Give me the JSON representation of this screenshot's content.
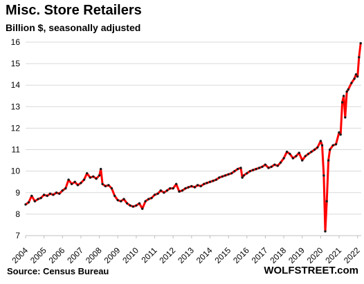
{
  "header": {
    "title": "Misc. Store Retailers",
    "subtitle": "Billion $, seasonally adjusted"
  },
  "footer": {
    "source": "Source: Census Bureau",
    "brand": "WOLFSTREET.com"
  },
  "colors": {
    "line": "#ff0000",
    "marker": "#1a1a1a",
    "grid": "#d9d9d9",
    "axis": "#bfbfbf"
  },
  "chart_data": {
    "type": "line",
    "title": "Misc. Store Retailers",
    "subtitle": "Billion $, seasonally adjusted",
    "xlabel": "",
    "ylabel": "",
    "ylim": [
      7,
      16
    ],
    "yticks": [
      7,
      8,
      9,
      10,
      11,
      12,
      13,
      14,
      15,
      16
    ],
    "xlim": [
      2004,
      2022.2
    ],
    "xticks": [
      2004,
      2005,
      2006,
      2007,
      2008,
      2009,
      2010,
      2011,
      2012,
      2013,
      2014,
      2015,
      2016,
      2017,
      2018,
      2019,
      2020,
      2021,
      2022
    ],
    "grid": "horizontal",
    "legend": "none",
    "series": [
      {
        "points": [
          [
            2004.0,
            8.45
          ],
          [
            2004.17,
            8.55
          ],
          [
            2004.33,
            8.85
          ],
          [
            2004.5,
            8.6
          ],
          [
            2004.67,
            8.7
          ],
          [
            2004.83,
            8.75
          ],
          [
            2005.0,
            8.9
          ],
          [
            2005.17,
            8.85
          ],
          [
            2005.33,
            8.95
          ],
          [
            2005.5,
            8.9
          ],
          [
            2005.67,
            9.0
          ],
          [
            2005.83,
            8.95
          ],
          [
            2006.0,
            9.1
          ],
          [
            2006.17,
            9.2
          ],
          [
            2006.33,
            9.6
          ],
          [
            2006.5,
            9.4
          ],
          [
            2006.67,
            9.5
          ],
          [
            2006.83,
            9.35
          ],
          [
            2007.0,
            9.45
          ],
          [
            2007.17,
            9.6
          ],
          [
            2007.33,
            9.9
          ],
          [
            2007.5,
            9.7
          ],
          [
            2007.67,
            9.75
          ],
          [
            2007.83,
            9.65
          ],
          [
            2008.0,
            9.8
          ],
          [
            2008.08,
            10.1
          ],
          [
            2008.17,
            9.4
          ],
          [
            2008.33,
            9.3
          ],
          [
            2008.5,
            9.35
          ],
          [
            2008.67,
            9.2
          ],
          [
            2008.83,
            8.85
          ],
          [
            2009.0,
            8.65
          ],
          [
            2009.17,
            8.6
          ],
          [
            2009.33,
            8.7
          ],
          [
            2009.5,
            8.5
          ],
          [
            2009.67,
            8.4
          ],
          [
            2009.83,
            8.35
          ],
          [
            2010.0,
            8.4
          ],
          [
            2010.17,
            8.5
          ],
          [
            2010.33,
            8.25
          ],
          [
            2010.5,
            8.6
          ],
          [
            2010.67,
            8.7
          ],
          [
            2010.83,
            8.75
          ],
          [
            2011.0,
            8.9
          ],
          [
            2011.17,
            8.95
          ],
          [
            2011.33,
            9.1
          ],
          [
            2011.5,
            9.0
          ],
          [
            2011.67,
            9.1
          ],
          [
            2011.83,
            9.2
          ],
          [
            2012.0,
            9.2
          ],
          [
            2012.17,
            9.4
          ],
          [
            2012.33,
            9.05
          ],
          [
            2012.5,
            9.1
          ],
          [
            2012.67,
            9.2
          ],
          [
            2012.83,
            9.25
          ],
          [
            2013.0,
            9.3
          ],
          [
            2013.17,
            9.25
          ],
          [
            2013.33,
            9.35
          ],
          [
            2013.5,
            9.3
          ],
          [
            2013.67,
            9.4
          ],
          [
            2013.83,
            9.45
          ],
          [
            2014.0,
            9.5
          ],
          [
            2014.17,
            9.55
          ],
          [
            2014.33,
            9.6
          ],
          [
            2014.5,
            9.7
          ],
          [
            2014.67,
            9.75
          ],
          [
            2014.83,
            9.8
          ],
          [
            2015.0,
            9.85
          ],
          [
            2015.17,
            9.9
          ],
          [
            2015.33,
            10.0
          ],
          [
            2015.5,
            10.1
          ],
          [
            2015.67,
            10.15
          ],
          [
            2015.75,
            9.7
          ],
          [
            2015.83,
            9.8
          ],
          [
            2016.0,
            9.9
          ],
          [
            2016.17,
            10.0
          ],
          [
            2016.33,
            10.05
          ],
          [
            2016.5,
            10.1
          ],
          [
            2016.67,
            10.15
          ],
          [
            2016.83,
            10.2
          ],
          [
            2017.0,
            10.3
          ],
          [
            2017.17,
            10.15
          ],
          [
            2017.33,
            10.2
          ],
          [
            2017.5,
            10.3
          ],
          [
            2017.67,
            10.25
          ],
          [
            2017.83,
            10.4
          ],
          [
            2018.0,
            10.6
          ],
          [
            2018.17,
            10.9
          ],
          [
            2018.33,
            10.8
          ],
          [
            2018.5,
            10.6
          ],
          [
            2018.67,
            10.7
          ],
          [
            2018.83,
            10.85
          ],
          [
            2019.0,
            10.5
          ],
          [
            2019.17,
            10.7
          ],
          [
            2019.33,
            10.8
          ],
          [
            2019.5,
            10.9
          ],
          [
            2019.67,
            11.0
          ],
          [
            2019.83,
            11.1
          ],
          [
            2020.0,
            11.4
          ],
          [
            2020.08,
            11.2
          ],
          [
            2020.17,
            9.8
          ],
          [
            2020.25,
            7.2
          ],
          [
            2020.33,
            8.6
          ],
          [
            2020.42,
            10.5
          ],
          [
            2020.5,
            11.0
          ],
          [
            2020.67,
            11.2
          ],
          [
            2020.83,
            11.25
          ],
          [
            2021.0,
            11.8
          ],
          [
            2021.08,
            11.7
          ],
          [
            2021.17,
            13.2
          ],
          [
            2021.25,
            13.5
          ],
          [
            2021.33,
            12.5
          ],
          [
            2021.42,
            13.7
          ],
          [
            2021.5,
            13.8
          ],
          [
            2021.67,
            14.1
          ],
          [
            2021.83,
            14.3
          ],
          [
            2021.92,
            14.5
          ],
          [
            2022.0,
            14.4
          ],
          [
            2022.08,
            15.3
          ],
          [
            2022.17,
            15.95
          ]
        ]
      }
    ]
  }
}
